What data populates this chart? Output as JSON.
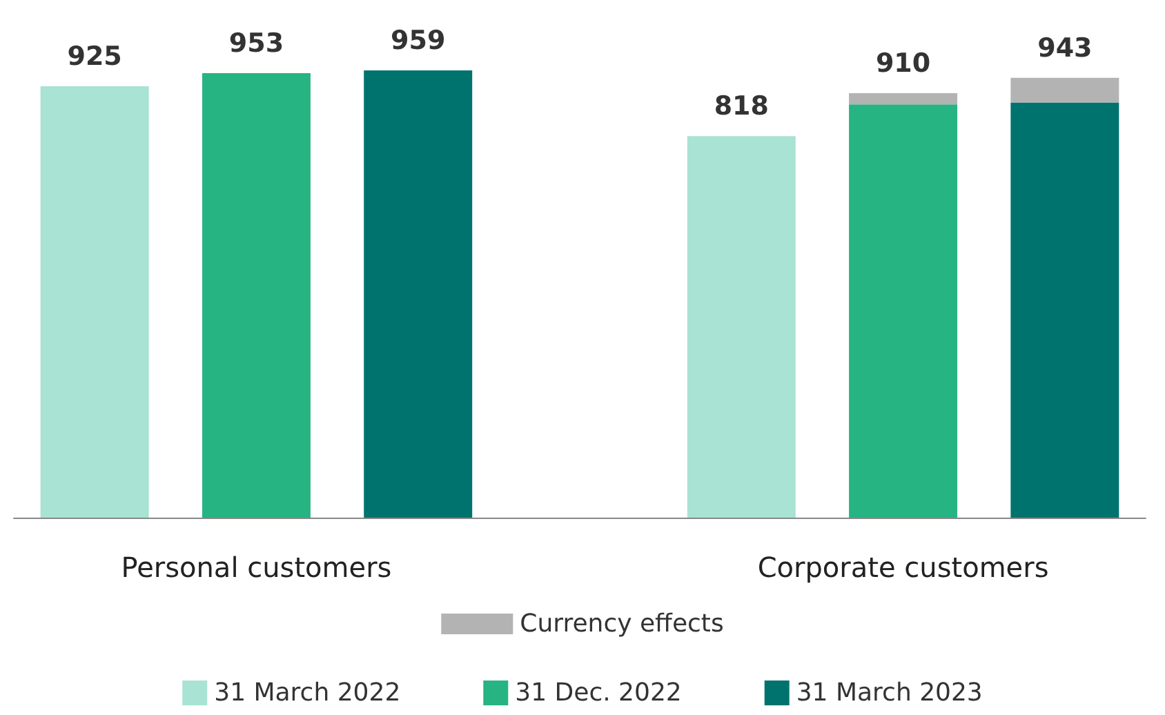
{
  "chart_data": {
    "type": "bar",
    "categories": [
      null,
      "Personal customers",
      null,
      null,
      null,
      "Corporate customers",
      null
    ],
    "series": [
      {
        "name": "31 March 2022",
        "color": "#a8e3d4",
        "values": [
          925,
          null,
          null,
          null,
          818,
          null,
          null
        ],
        "value_labels": [
          "925",
          null,
          null,
          null,
          "818",
          null,
          null
        ]
      },
      {
        "name": "31 Dec. 2022",
        "color": "#27b483",
        "values": [
          null,
          953,
          null,
          null,
          null,
          886,
          null
        ],
        "value_labels": [
          null,
          "953",
          null,
          null,
          null,
          null,
          null
        ]
      },
      {
        "name": "31 March 2023",
        "color": "#00736f",
        "values": [
          null,
          null,
          959,
          null,
          null,
          null,
          890
        ],
        "value_labels": [
          null,
          null,
          "959",
          null,
          null,
          null,
          null
        ]
      },
      {
        "name": "Currency effects",
        "color": "#b3b3b3",
        "values": [
          null,
          null,
          null,
          null,
          null,
          24,
          53
        ]
      }
    ],
    "stacked": true,
    "totals": [
      null,
      null,
      null,
      null,
      null,
      "910",
      "943"
    ],
    "tick_labels": "x",
    "legend": "bottom"
  }
}
